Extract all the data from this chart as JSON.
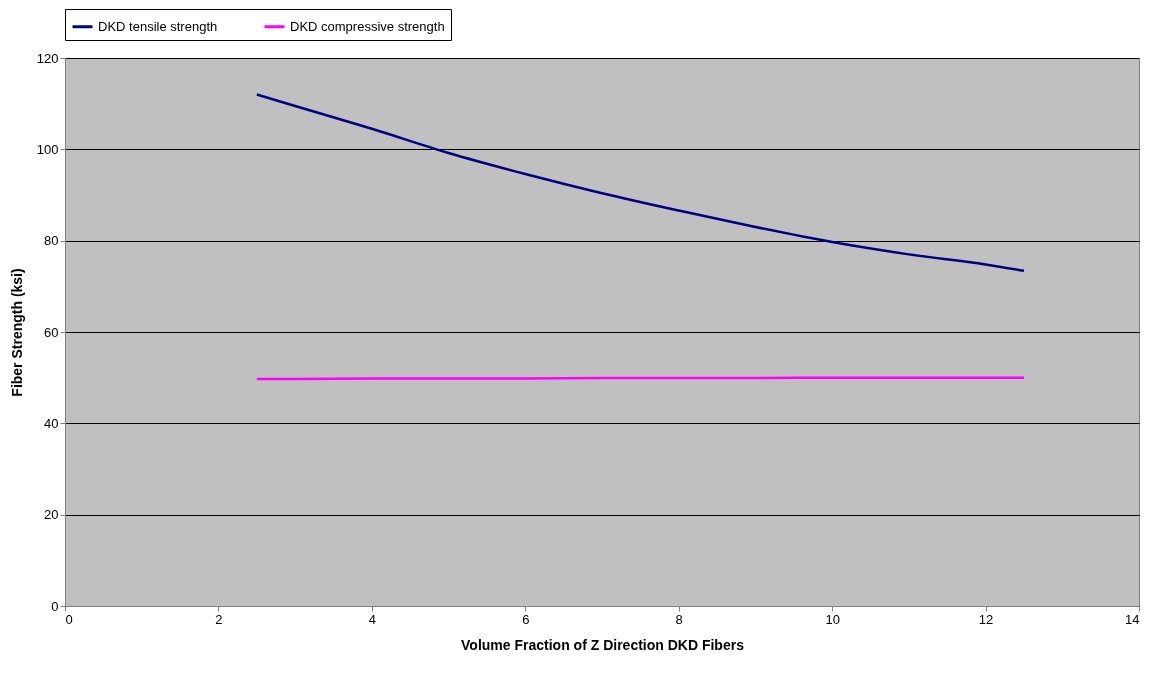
{
  "chart_data": {
    "type": "line",
    "xlabel": "Volume Fraction of Z Direction DKD Fibers",
    "ylabel": "Fiber Strength (ksi)",
    "x": [
      2.5,
      3,
      4,
      5,
      6,
      7,
      8,
      9,
      10,
      11,
      12,
      12.5
    ],
    "series": [
      {
        "name": "DKD tensile strength",
        "color": "#000080",
        "values": [
          112,
          109.5,
          104.5,
          99.2,
          94.6,
          90.4,
          86.6,
          83,
          79.7,
          77,
          74.8,
          73.4
        ]
      },
      {
        "name": "DKD compressive strength",
        "color": "#ff00ff",
        "values": [
          49.7,
          49.7,
          49.8,
          49.8,
          49.8,
          49.9,
          49.9,
          49.9,
          50,
          50,
          50,
          50
        ]
      }
    ],
    "xlim": [
      0,
      14
    ],
    "xticks": [
      0,
      2,
      4,
      6,
      8,
      10,
      12,
      14
    ],
    "ylim": [
      0,
      120
    ],
    "yticks": [
      0,
      20,
      40,
      60,
      80,
      100,
      120
    ],
    "grid": "y",
    "legend": "top",
    "marker": "none",
    "line_style": "solid"
  }
}
